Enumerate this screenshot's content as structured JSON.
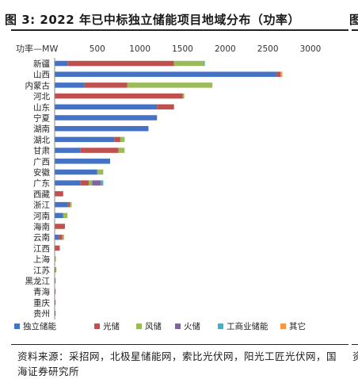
{
  "figure": {
    "title": "图 3:  2022 年已中标独立储能项目地域分布（功率）",
    "title_next_column": "图",
    "source": "资料来源：采招网，北极星储能网，索比光伏网，阳光工匠光伏网，国海证券研究所",
    "source_next_column": "资"
  },
  "chart_data": {
    "type": "bar",
    "orientation": "horizontal",
    "stacked": true,
    "unit_label": "功率—MW",
    "xlim": [
      0,
      3000
    ],
    "x_ticks": [
      "500",
      "1000",
      "1500",
      "2000",
      "2500",
      "3000"
    ],
    "categories": [
      "新疆",
      "山西",
      "内蒙古",
      "河北",
      "山东",
      "宁夏",
      "湖南",
      "湖北",
      "甘肃",
      "广西",
      "安徽",
      "广东",
      "西藏",
      "浙江",
      "河南",
      "海南",
      "云南",
      "江西",
      "上海",
      "江苏",
      "黑龙江",
      "青海",
      "重庆",
      "贵州"
    ],
    "series": [
      {
        "name": "独立储能",
        "color": "#4472c4",
        "values": [
          150,
          2600,
          350,
          0,
          1200,
          1200,
          1100,
          700,
          300,
          650,
          500,
          300,
          0,
          150,
          100,
          0,
          50,
          0,
          0,
          10,
          0,
          0,
          0,
          0
        ]
      },
      {
        "name": "光储",
        "color": "#c0504d",
        "values": [
          1250,
          50,
          500,
          1500,
          200,
          0,
          0,
          70,
          450,
          0,
          0,
          100,
          100,
          30,
          0,
          120,
          40,
          60,
          0,
          0,
          5,
          5,
          3,
          3
        ]
      },
      {
        "name": "风储",
        "color": "#9bbb59",
        "values": [
          350,
          0,
          1000,
          20,
          0,
          0,
          0,
          50,
          70,
          0,
          70,
          40,
          0,
          20,
          50,
          0,
          20,
          0,
          15,
          5,
          0,
          0,
          0,
          0
        ]
      },
      {
        "name": "火储",
        "color": "#8064a2",
        "values": [
          0,
          0,
          0,
          0,
          0,
          0,
          0,
          0,
          0,
          0,
          0,
          100,
          0,
          0,
          0,
          0,
          0,
          0,
          0,
          0,
          0,
          0,
          0,
          0
        ]
      },
      {
        "name": "工商业储能",
        "color": "#4bacc6",
        "values": [
          10,
          0,
          0,
          0,
          0,
          0,
          0,
          0,
          0,
          0,
          0,
          30,
          0,
          0,
          0,
          0,
          0,
          0,
          0,
          0,
          0,
          0,
          0,
          0
        ]
      },
      {
        "name": "其它",
        "color": "#f79646",
        "values": [
          0,
          20,
          0,
          0,
          0,
          0,
          0,
          0,
          0,
          0,
          0,
          0,
          0,
          0,
          0,
          0,
          0,
          0,
          0,
          0,
          0,
          0,
          0,
          0
        ]
      }
    ],
    "grid": false,
    "legend_position": "bottom"
  }
}
